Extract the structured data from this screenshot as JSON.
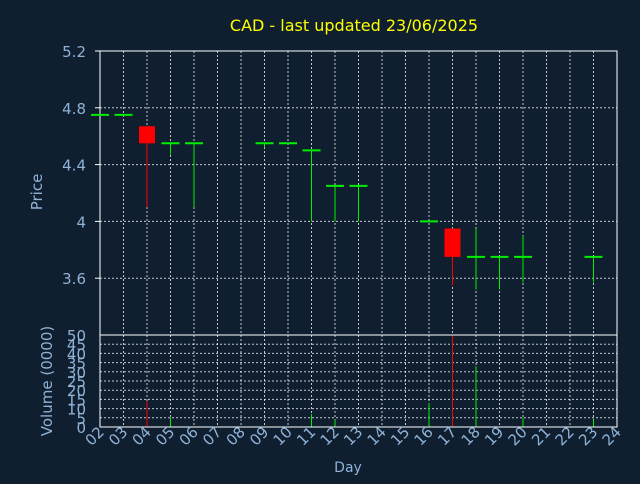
{
  "title": "CAD - last updated 23/06/2025",
  "colors": {
    "background": "#0f1f30",
    "plot_bg": "#0f1f30",
    "frame": "#ffffff",
    "grid": "#ffffff",
    "title": "#ffff00",
    "axis_text": "#8fb2d6",
    "up": "#00ee00",
    "down": "#ff0000",
    "volume_dark": "#0f1f30"
  },
  "chart_data": [
    {
      "type": "candlestick",
      "title": "CAD - last updated 23/06/2025",
      "ylabel": "Price",
      "ylim": [
        3.2,
        5.2
      ],
      "yticks": [
        "5.2",
        "4.8",
        "4.4",
        "4",
        "3.6"
      ],
      "ytick_values": [
        5.2,
        4.8,
        4.4,
        4.0,
        3.6
      ],
      "grid": true,
      "days": [
        "02",
        "03",
        "04",
        "05",
        "06",
        "07",
        "08",
        "09",
        "10",
        "11",
        "12",
        "13",
        "14",
        "15",
        "16",
        "17",
        "18",
        "19",
        "20",
        "21",
        "22",
        "23",
        "24"
      ],
      "candles": [
        {
          "day": "02",
          "open": 4.75,
          "high": 4.75,
          "low": 4.75,
          "close": 4.75
        },
        {
          "day": "03",
          "open": 4.75,
          "high": 4.75,
          "low": 4.75,
          "close": 4.75
        },
        {
          "day": "04",
          "open": 4.67,
          "high": 4.67,
          "low": 4.1,
          "close": 4.55
        },
        {
          "day": "05",
          "open": 4.55,
          "high": 4.55,
          "low": 4.47,
          "close": 4.55
        },
        {
          "day": "06",
          "open": 4.55,
          "high": 4.55,
          "low": 4.1,
          "close": 4.55
        },
        {
          "day": "09",
          "open": 4.55,
          "high": 4.55,
          "low": 4.52,
          "close": 4.55
        },
        {
          "day": "10",
          "open": 4.55,
          "high": 4.55,
          "low": 4.55,
          "close": 4.55
        },
        {
          "day": "11",
          "open": 4.5,
          "high": 4.5,
          "low": 4.0,
          "close": 4.5
        },
        {
          "day": "12",
          "open": 4.25,
          "high": 4.25,
          "low": 4.0,
          "close": 4.25
        },
        {
          "day": "13",
          "open": 4.25,
          "high": 4.25,
          "low": 4.0,
          "close": 4.25
        },
        {
          "day": "16",
          "open": 4.0,
          "high": 4.0,
          "low": 4.0,
          "close": 4.0
        },
        {
          "day": "17",
          "open": 3.95,
          "high": 3.95,
          "low": 3.55,
          "close": 3.75
        },
        {
          "day": "18",
          "open": 3.75,
          "high": 3.95,
          "low": 3.52,
          "close": 3.75
        },
        {
          "day": "19",
          "open": 3.75,
          "high": 3.75,
          "low": 3.52,
          "close": 3.75
        },
        {
          "day": "20",
          "open": 3.75,
          "high": 3.9,
          "low": 3.57,
          "close": 3.75
        },
        {
          "day": "23",
          "open": 3.75,
          "high": 3.75,
          "low": 3.57,
          "close": 3.75
        }
      ]
    },
    {
      "type": "bar",
      "ylabel": "Volume (0000)",
      "xlabel": "Day",
      "ylim": [
        0,
        50
      ],
      "yticks": [
        "50",
        "45",
        "40",
        "35",
        "30",
        "25",
        "20",
        "15",
        "10",
        "5",
        "0"
      ],
      "ytick_values": [
        50,
        45,
        40,
        35,
        30,
        25,
        20,
        15,
        10,
        5,
        0
      ],
      "xticks": [
        "02",
        "03",
        "04",
        "05",
        "06",
        "07",
        "08",
        "09",
        "10",
        "11",
        "12",
        "13",
        "14",
        "15",
        "16",
        "17",
        "18",
        "19",
        "20",
        "21",
        "22",
        "23",
        "24"
      ],
      "bars": [
        {
          "day": "04",
          "value": 14,
          "direction": "down"
        },
        {
          "day": "05",
          "value": 5,
          "direction": "up"
        },
        {
          "day": "11",
          "value": 7,
          "direction": "up"
        },
        {
          "day": "12",
          "value": 4,
          "direction": "up"
        },
        {
          "day": "16",
          "value": 13,
          "direction": "up"
        },
        {
          "day": "17",
          "value": 50,
          "direction": "down"
        },
        {
          "day": "18",
          "value": 33,
          "direction": "up"
        },
        {
          "day": "20",
          "value": 5,
          "direction": "up"
        },
        {
          "day": "23",
          "value": 4,
          "direction": "up"
        }
      ]
    }
  ]
}
